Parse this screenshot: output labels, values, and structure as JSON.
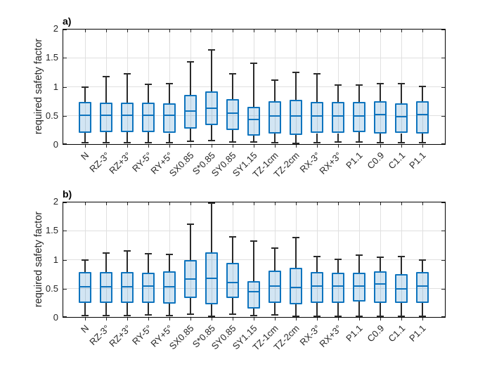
{
  "colors": {
    "box_edge": "#0E74BE",
    "box_fill": "rgba(14,116,190,0.19)",
    "median": "#0E74BE",
    "whisker": "#2B2B2B",
    "grid": "#E0E0E0",
    "axis": "#000000",
    "tick_text": "#262626"
  },
  "chart_data": [
    {
      "type": "boxplot",
      "panel_label": "a)",
      "ylabel": "required safety factor",
      "xlabel": "",
      "ylim": [
        0,
        2
      ],
      "yticks": [
        0,
        0.5,
        1,
        1.5,
        2
      ],
      "ytick_labels": [
        "0",
        "0.5",
        "1",
        "1.5",
        "2"
      ],
      "grid": true,
      "x_tick_rotation_deg": 45,
      "categories": [
        "N",
        "RZ-3°",
        "RZ+3°",
        "RY-5°",
        "RY+5°",
        "SX0.85",
        "S*0.85",
        "SY0.85",
        "SY1.15",
        "TZ-1cm",
        "TZ-2cm",
        "RX-3°",
        "RX+3°",
        "P1.1",
        "C0.9",
        "C1.1",
        "P1.1"
      ],
      "boxes": [
        {
          "low": 0.04,
          "q1": 0.21,
          "median": 0.51,
          "q3": 0.74,
          "high": 1.0
        },
        {
          "low": 0.04,
          "q1": 0.22,
          "median": 0.51,
          "q3": 0.73,
          "high": 1.17
        },
        {
          "low": 0.04,
          "q1": 0.22,
          "median": 0.51,
          "q3": 0.73,
          "high": 1.23
        },
        {
          "low": 0.04,
          "q1": 0.22,
          "median": 0.51,
          "q3": 0.73,
          "high": 1.04
        },
        {
          "low": 0.04,
          "q1": 0.2,
          "median": 0.51,
          "q3": 0.72,
          "high": 1.06
        },
        {
          "low": 0.06,
          "q1": 0.28,
          "median": 0.58,
          "q3": 0.86,
          "high": 1.43
        },
        {
          "low": 0.07,
          "q1": 0.34,
          "median": 0.63,
          "q3": 0.92,
          "high": 1.64
        },
        {
          "low": 0.05,
          "q1": 0.26,
          "median": 0.55,
          "q3": 0.79,
          "high": 1.22
        },
        {
          "low": 0.05,
          "q1": 0.16,
          "median": 0.44,
          "q3": 0.66,
          "high": 1.41
        },
        {
          "low": 0.04,
          "q1": 0.19,
          "median": 0.5,
          "q3": 0.75,
          "high": 1.11
        },
        {
          "low": 0.02,
          "q1": 0.17,
          "median": 0.5,
          "q3": 0.77,
          "high": 1.25
        },
        {
          "low": 0.04,
          "q1": 0.2,
          "median": 0.5,
          "q3": 0.74,
          "high": 1.22
        },
        {
          "low": 0.05,
          "q1": 0.2,
          "median": 0.5,
          "q3": 0.74,
          "high": 1.03
        },
        {
          "low": 0.05,
          "q1": 0.22,
          "median": 0.5,
          "q3": 0.74,
          "high": 1.03
        },
        {
          "low": 0.04,
          "q1": 0.2,
          "median": 0.52,
          "q3": 0.75,
          "high": 1.05
        },
        {
          "low": 0.04,
          "q1": 0.2,
          "median": 0.48,
          "q3": 0.71,
          "high": 1.05
        },
        {
          "low": 0.04,
          "q1": 0.2,
          "median": 0.52,
          "q3": 0.75,
          "high": 1.01
        }
      ]
    },
    {
      "type": "boxplot",
      "panel_label": "b)",
      "ylabel": "required safety factor",
      "xlabel": "",
      "ylim": [
        0,
        2
      ],
      "yticks": [
        0,
        0.5,
        1,
        1.5,
        2
      ],
      "ytick_labels": [
        "0",
        "0.5",
        "1",
        "1.5",
        "2"
      ],
      "grid": true,
      "x_tick_rotation_deg": 45,
      "categories": [
        "N",
        "RZ-3°",
        "RZ+3°",
        "RY-5°",
        "RY+5°",
        "SX0.85",
        "S*0.85",
        "SY0.85",
        "SY1.15",
        "TZ-1cm",
        "TZ-2cm",
        "RX-3°",
        "RX+3°",
        "P1.1",
        "C0.9",
        "C1.1",
        "P1.1"
      ],
      "boxes": [
        {
          "low": 0.04,
          "q1": 0.25,
          "median": 0.53,
          "q3": 0.79,
          "high": 1.0
        },
        {
          "low": 0.04,
          "q1": 0.25,
          "median": 0.53,
          "q3": 0.79,
          "high": 1.11
        },
        {
          "low": 0.04,
          "q1": 0.25,
          "median": 0.53,
          "q3": 0.79,
          "high": 1.15
        },
        {
          "low": 0.05,
          "q1": 0.26,
          "median": 0.54,
          "q3": 0.77,
          "high": 1.1
        },
        {
          "low": 0.04,
          "q1": 0.24,
          "median": 0.53,
          "q3": 0.8,
          "high": 1.09
        },
        {
          "low": 0.06,
          "q1": 0.34,
          "median": 0.67,
          "q3": 0.99,
          "high": 1.61
        },
        {
          "low": 0.03,
          "q1": 0.23,
          "median": 0.68,
          "q3": 1.13,
          "high": 1.97
        },
        {
          "low": 0.06,
          "q1": 0.34,
          "median": 0.61,
          "q3": 0.94,
          "high": 1.4
        },
        {
          "low": 0.04,
          "q1": 0.16,
          "median": 0.45,
          "q3": 0.63,
          "high": 1.32
        },
        {
          "low": 0.05,
          "q1": 0.25,
          "median": 0.55,
          "q3": 0.81,
          "high": 1.2
        },
        {
          "low": 0.03,
          "q1": 0.23,
          "median": 0.52,
          "q3": 0.86,
          "high": 1.38
        },
        {
          "low": 0.03,
          "q1": 0.26,
          "median": 0.55,
          "q3": 0.79,
          "high": 1.06
        },
        {
          "low": 0.03,
          "q1": 0.26,
          "median": 0.55,
          "q3": 0.78,
          "high": 1.01
        },
        {
          "low": 0.03,
          "q1": 0.28,
          "median": 0.55,
          "q3": 0.77,
          "high": 1.08
        },
        {
          "low": 0.03,
          "q1": 0.26,
          "median": 0.58,
          "q3": 0.8,
          "high": 1.04
        },
        {
          "low": 0.03,
          "q1": 0.26,
          "median": 0.5,
          "q3": 0.75,
          "high": 1.06
        },
        {
          "low": 0.03,
          "q1": 0.25,
          "median": 0.55,
          "q3": 0.79,
          "high": 1.0
        }
      ]
    }
  ]
}
